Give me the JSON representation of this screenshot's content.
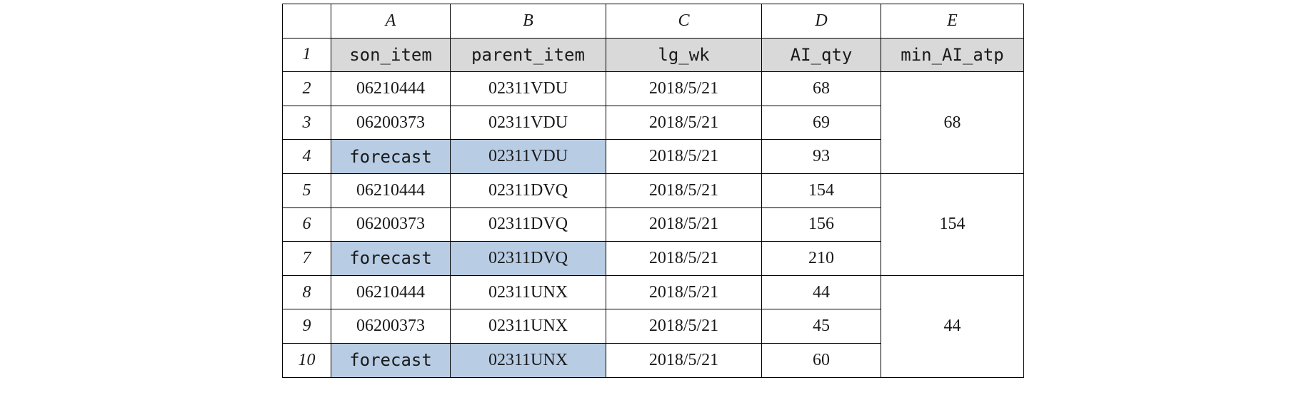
{
  "columns": [
    "A",
    "B",
    "C",
    "D",
    "E"
  ],
  "headers": [
    "son_item",
    "parent_item",
    "lg_wk",
    "AI_qty",
    "min_AI_atp"
  ],
  "rows": [
    {
      "num": "1"
    },
    {
      "num": "2",
      "son_item": "06210444",
      "parent_item": "02311VDU",
      "lg_wk": "2018/5/21",
      "AI_qty": "68"
    },
    {
      "num": "3",
      "son_item": "06200373",
      "parent_item": "02311VDU",
      "lg_wk": "2018/5/21",
      "AI_qty": "69"
    },
    {
      "num": "4",
      "son_item": "forecast",
      "parent_item": "02311VDU",
      "lg_wk": "2018/5/21",
      "AI_qty": "93"
    },
    {
      "num": "5",
      "son_item": "06210444",
      "parent_item": "02311DVQ",
      "lg_wk": "2018/5/21",
      "AI_qty": "154"
    },
    {
      "num": "6",
      "son_item": "06200373",
      "parent_item": "02311DVQ",
      "lg_wk": "2018/5/21",
      "AI_qty": "156"
    },
    {
      "num": "7",
      "son_item": "forecast",
      "parent_item": "02311DVQ",
      "lg_wk": "2018/5/21",
      "AI_qty": "210"
    },
    {
      "num": "8",
      "son_item": "06210444",
      "parent_item": "02311UNX",
      "lg_wk": "2018/5/21",
      "AI_qty": "44"
    },
    {
      "num": "9",
      "son_item": "06200373",
      "parent_item": "02311UNX",
      "lg_wk": "2018/5/21",
      "AI_qty": "45"
    },
    {
      "num": "10",
      "son_item": "forecast",
      "parent_item": "02311UNX",
      "lg_wk": "2018/5/21",
      "AI_qty": "60"
    }
  ],
  "merged_min_AI_atp": [
    "68",
    "154",
    "44"
  ],
  "colors": {
    "header_fill": "#d9d9d9",
    "highlight_fill": "#b8cce4",
    "border": "#000000"
  }
}
